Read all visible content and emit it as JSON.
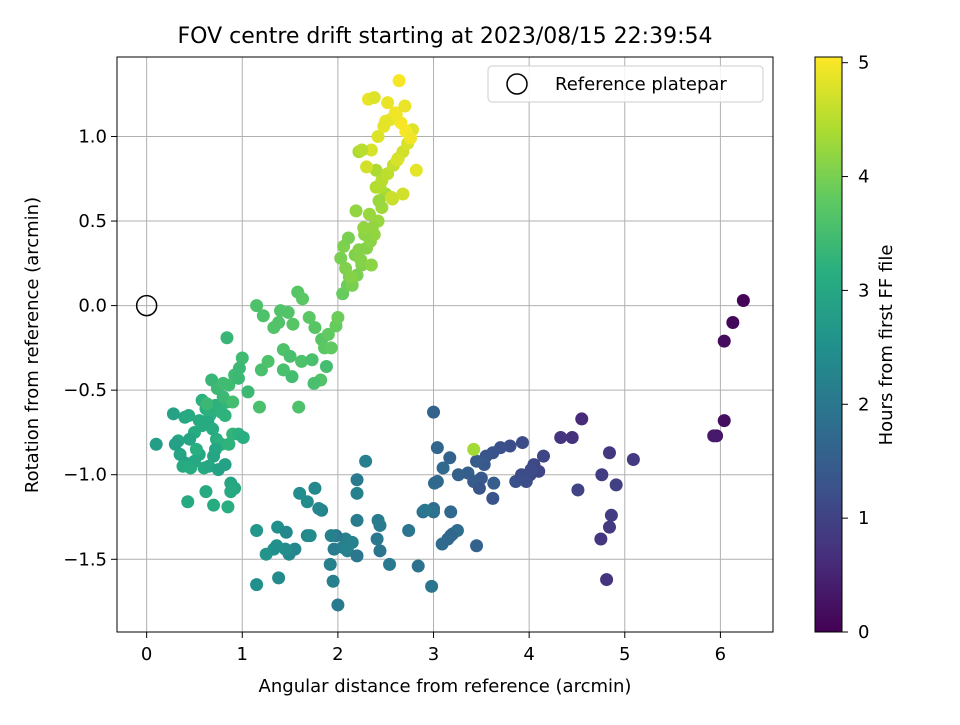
{
  "chart_data": {
    "type": "scatter",
    "title": "FOV centre drift starting at 2023/08/15 22:39:54",
    "xlabel": "Angular distance from reference (arcmin)",
    "ylabel": "Rotation from reference (arcmin)",
    "xlim": [
      -0.31,
      6.55
    ],
    "ylim": [
      -1.93,
      1.47
    ],
    "xticks": [
      0,
      1,
      2,
      3,
      4,
      5,
      6
    ],
    "xtick_labels": [
      "0",
      "1",
      "2",
      "3",
      "4",
      "5",
      "6"
    ],
    "yticks": [
      -1.5,
      -1.0,
      -0.5,
      0.0,
      0.5,
      1.0
    ],
    "ytick_labels": [
      "−1.5",
      "−1.0",
      "−0.5",
      "0.0",
      "0.5",
      "1.0"
    ],
    "grid": true,
    "colorbar": {
      "label": "Hours from first FF file",
      "range": [
        0,
        5.05
      ],
      "ticks": [
        0,
        1,
        2,
        3,
        4,
        5
      ],
      "tick_labels": [
        "0",
        "1",
        "2",
        "3",
        "4",
        "5"
      ],
      "colormap": "viridis"
    },
    "legend": {
      "position": "top-right",
      "entries": [
        "Reference platepar"
      ]
    },
    "reference_point": {
      "x": 0,
      "y": 0
    },
    "series": [
      {
        "name": "Reference platepar",
        "x": [
          0
        ],
        "y": [
          0
        ]
      },
      {
        "x": [
          6.24,
          6.13,
          6.04,
          6.04,
          5.96,
          5.93,
          4.55,
          4.45,
          4.33,
          4.84,
          4.76,
          5.09,
          4.91,
          4.51,
          4.86,
          4.84,
          4.75,
          4.81,
          4.15,
          4.05,
          3.93,
          3.8,
          3.7,
          3.62,
          3.55,
          3.53,
          3.45,
          3.36,
          3.26,
          3.5,
          3.42,
          3.63,
          3.48,
          3.62,
          3.86,
          3.97,
          3.92,
          4.01,
          4.1,
          4.02,
          3.95,
          3.0,
          3.04,
          3.1,
          3.01,
          3.17,
          3.0,
          3.04,
          2.89,
          3.09,
          3.18,
          3.25,
          3.2,
          2.84,
          2.98,
          3.18,
          3.15,
          3.45,
          3.0,
          2.74,
          2.91,
          2.54,
          2.44,
          2.41,
          2.44,
          2.42,
          2.29,
          2.2,
          2.2,
          2.2,
          2.08,
          2.15,
          2.05,
          1.98,
          1.96,
          1.92,
          1.83,
          1.8,
          1.76,
          1.68,
          1.6,
          1.55,
          1.49,
          1.45,
          1.37,
          1.33,
          1.25,
          1.15,
          1.15,
          1.38,
          2.0,
          1.95,
          1.93,
          2.1,
          2.2,
          1.68,
          1.46,
          1.36,
          1.71,
          0.1,
          0.28,
          0.33,
          0.4,
          0.44,
          0.5,
          0.55,
          0.62,
          0.66,
          0.72,
          0.78,
          0.84,
          0.9,
          0.96,
          1.01,
          0.35,
          0.4,
          0.45,
          0.5,
          0.55,
          0.6,
          0.65,
          0.7,
          0.75,
          0.82,
          0.88,
          0.92,
          0.43,
          0.62,
          0.7,
          0.85,
          0.88,
          0.38,
          0.46,
          0.52,
          0.58,
          0.64,
          0.69,
          0.73,
          0.78,
          0.86,
          0.3,
          0.72,
          0.82,
          0.58,
          0.68,
          0.74,
          0.8,
          0.86,
          0.92,
          0.96,
          1.0,
          1.06,
          0.84,
          0.63,
          0.97,
          0.8,
          0.9,
          1.2,
          1.27,
          1.33,
          1.4,
          1.48,
          1.53,
          1.58,
          1.63,
          1.7,
          1.76,
          1.83,
          1.86,
          1.9,
          1.22,
          1.38,
          1.43,
          1.5,
          1.52,
          1.82,
          1.75,
          1.88,
          1.62,
          1.73,
          1.59,
          1.43,
          1.18,
          1.15,
          1.93,
          1.98,
          2.0,
          2.05,
          2.1,
          2.12,
          2.15,
          2.2,
          2.25,
          2.3,
          2.34,
          2.38,
          2.42,
          2.46,
          2.5,
          2.03,
          2.08,
          2.14,
          2.18,
          2.22,
          2.28,
          2.36,
          2.43,
          2.19,
          2.33,
          2.27,
          2.06,
          2.11,
          2.24,
          2.35,
          2.4,
          3.42,
          2.44,
          2.22,
          2.4,
          2.46,
          2.52,
          2.58,
          2.63,
          2.68,
          2.73,
          2.78,
          2.82,
          2.3,
          2.35,
          2.42,
          2.48,
          2.55,
          2.6,
          2.66,
          2.71,
          2.76,
          2.64,
          2.32,
          2.52,
          2.61,
          2.7,
          2.5,
          2.38,
          2.57,
          2.25,
          2.56,
          2.68,
          2.62
        ],
        "y": [
          0.03,
          -0.1,
          -0.21,
          -0.68,
          -0.77,
          -0.77,
          -0.67,
          -0.78,
          -0.78,
          -0.87,
          -1.0,
          -0.91,
          -1.06,
          -1.09,
          -1.24,
          -1.31,
          -1.38,
          -1.62,
          -0.89,
          -0.94,
          -0.81,
          -0.83,
          -0.84,
          -0.87,
          -0.89,
          -0.94,
          -0.92,
          -0.99,
          -1.0,
          -1.02,
          -1.04,
          -1.05,
          -1.08,
          -1.14,
          -1.04,
          -1.04,
          -1.0,
          -1.0,
          -0.98,
          -0.97,
          -1.03,
          -0.63,
          -0.84,
          -0.96,
          -1.05,
          -0.9,
          -1.2,
          -1.04,
          -1.22,
          -1.41,
          -1.22,
          -1.33,
          -1.35,
          -1.54,
          -1.66,
          -1.36,
          -1.38,
          -1.42,
          -1.22,
          -1.33,
          -1.21,
          -1.53,
          -1.45,
          -1.38,
          -1.3,
          -1.27,
          -0.92,
          -1.03,
          -1.11,
          -1.27,
          -1.38,
          -1.4,
          -1.43,
          -1.36,
          -1.44,
          -1.53,
          -1.21,
          -1.2,
          -1.08,
          -1.16,
          -1.11,
          -1.44,
          -1.47,
          -1.44,
          -1.31,
          -1.44,
          -1.47,
          -1.33,
          -1.65,
          -1.61,
          -1.77,
          -1.63,
          -1.36,
          -1.45,
          -1.48,
          -1.36,
          -1.34,
          -1.42,
          -1.36,
          -0.82,
          -0.64,
          -0.8,
          -0.66,
          -0.65,
          -0.75,
          -0.68,
          -0.61,
          -0.65,
          -0.59,
          -0.63,
          -0.57,
          -0.76,
          -0.76,
          -0.78,
          -0.88,
          -0.93,
          -0.79,
          -0.92,
          -0.88,
          -0.96,
          -0.95,
          -0.89,
          -0.97,
          -0.94,
          -1.05,
          -1.08,
          -1.16,
          -1.1,
          -1.18,
          -1.19,
          -1.1,
          -0.95,
          -0.96,
          -0.85,
          -0.71,
          -0.69,
          -0.73,
          -0.79,
          -0.82,
          -0.82,
          -0.82,
          -0.85,
          -0.65,
          -0.56,
          -0.44,
          -0.49,
          -0.54,
          -0.47,
          -0.41,
          -0.43,
          -0.31,
          -0.51,
          -0.19,
          -0.58,
          -0.37,
          -0.46,
          -0.57,
          -0.38,
          -0.33,
          -0.13,
          -0.03,
          -0.04,
          -0.11,
          0.08,
          0.04,
          -0.07,
          -0.13,
          -0.2,
          -0.25,
          -0.17,
          -0.06,
          -0.1,
          -0.26,
          -0.3,
          -0.42,
          -0.44,
          -0.46,
          -0.36,
          -0.33,
          -0.32,
          -0.6,
          -0.38,
          -0.6,
          0.0,
          -0.25,
          -0.12,
          -0.07,
          0.07,
          0.12,
          0.17,
          0.12,
          0.18,
          0.24,
          0.34,
          0.38,
          0.42,
          0.5,
          0.58,
          0.66,
          0.28,
          0.22,
          0.17,
          0.3,
          0.33,
          0.42,
          0.46,
          0.62,
          0.56,
          0.54,
          0.46,
          0.35,
          0.4,
          0.27,
          0.24,
          0.8,
          -0.85,
          0.7,
          0.91,
          0.7,
          0.74,
          0.78,
          0.83,
          0.87,
          0.91,
          0.96,
          1.04,
          0.8,
          0.82,
          0.92,
          1.0,
          1.06,
          1.1,
          1.14,
          1.08,
          1.03,
          0.99,
          1.33,
          1.22,
          1.2,
          1.13,
          1.18,
          1.09,
          1.23,
          0.63,
          0.92,
          0.64,
          0.66,
          0.86
        ],
        "c": [
          0.05,
          0.1,
          0.15,
          0.2,
          0.3,
          0.35,
          0.6,
          0.7,
          0.75,
          0.8,
          0.9,
          0.85,
          0.95,
          1.0,
          0.9,
          0.85,
          0.8,
          0.75,
          1.05,
          1.1,
          1.15,
          1.2,
          1.25,
          1.3,
          1.35,
          1.4,
          1.45,
          1.5,
          1.55,
          1.4,
          1.45,
          1.5,
          1.35,
          1.3,
          1.25,
          1.2,
          1.15,
          1.1,
          1.05,
          1.15,
          1.2,
          1.6,
          1.65,
          1.7,
          1.75,
          1.6,
          1.8,
          1.7,
          1.85,
          1.75,
          1.7,
          1.8,
          1.85,
          1.9,
          1.95,
          1.65,
          1.7,
          1.6,
          1.9,
          1.95,
          2.0,
          2.05,
          1.95,
          2.0,
          2.1,
          2.1,
          2.15,
          2.05,
          2.2,
          2.1,
          2.15,
          2.25,
          2.2,
          2.0,
          2.1,
          2.2,
          2.25,
          2.3,
          2.35,
          2.4,
          2.45,
          2.3,
          2.35,
          2.45,
          2.5,
          2.55,
          2.6,
          2.65,
          2.5,
          2.4,
          2.05,
          2.15,
          2.2,
          2.25,
          2.0,
          2.3,
          2.35,
          2.5,
          2.4,
          2.8,
          2.9,
          3.0,
          3.0,
          3.05,
          3.1,
          3.1,
          3.15,
          3.2,
          3.2,
          3.25,
          3.3,
          3.3,
          3.2,
          3.15,
          2.95,
          2.9,
          2.95,
          3.0,
          3.0,
          3.05,
          3.0,
          2.95,
          2.9,
          2.9,
          2.95,
          3.0,
          3.05,
          3.05,
          3.1,
          3.15,
          3.05,
          3.05,
          3.1,
          3.15,
          3.1,
          3.05,
          3.1,
          3.15,
          3.2,
          3.25,
          2.85,
          3.0,
          3.25,
          3.2,
          3.35,
          3.4,
          3.4,
          3.45,
          3.45,
          3.4,
          3.45,
          3.4,
          3.35,
          3.4,
          3.4,
          3.45,
          3.5,
          3.55,
          3.6,
          3.65,
          3.65,
          3.65,
          3.7,
          3.7,
          3.75,
          3.75,
          3.7,
          3.7,
          3.75,
          3.8,
          3.6,
          3.65,
          3.6,
          3.55,
          3.5,
          3.65,
          3.55,
          3.5,
          3.6,
          3.55,
          3.6,
          3.55,
          3.55,
          3.6,
          3.8,
          3.85,
          3.9,
          3.85,
          3.9,
          3.95,
          4.0,
          4.0,
          4.05,
          4.1,
          4.15,
          4.2,
          4.25,
          4.3,
          4.35,
          4.0,
          4.05,
          4.1,
          4.05,
          4.1,
          4.15,
          4.2,
          4.25,
          4.2,
          4.25,
          4.2,
          4.05,
          4.0,
          4.1,
          4.15,
          4.4,
          4.35,
          4.45,
          4.4,
          4.45,
          4.5,
          4.55,
          4.6,
          4.65,
          4.7,
          4.75,
          4.8,
          4.85,
          4.7,
          4.75,
          4.8,
          4.85,
          4.9,
          4.95,
          5.0,
          5.0,
          4.95,
          5.0,
          4.9,
          4.9,
          4.95,
          4.9,
          4.85,
          4.8,
          4.6,
          4.5,
          4.65,
          4.7,
          4.75
        ]
      }
    ]
  }
}
